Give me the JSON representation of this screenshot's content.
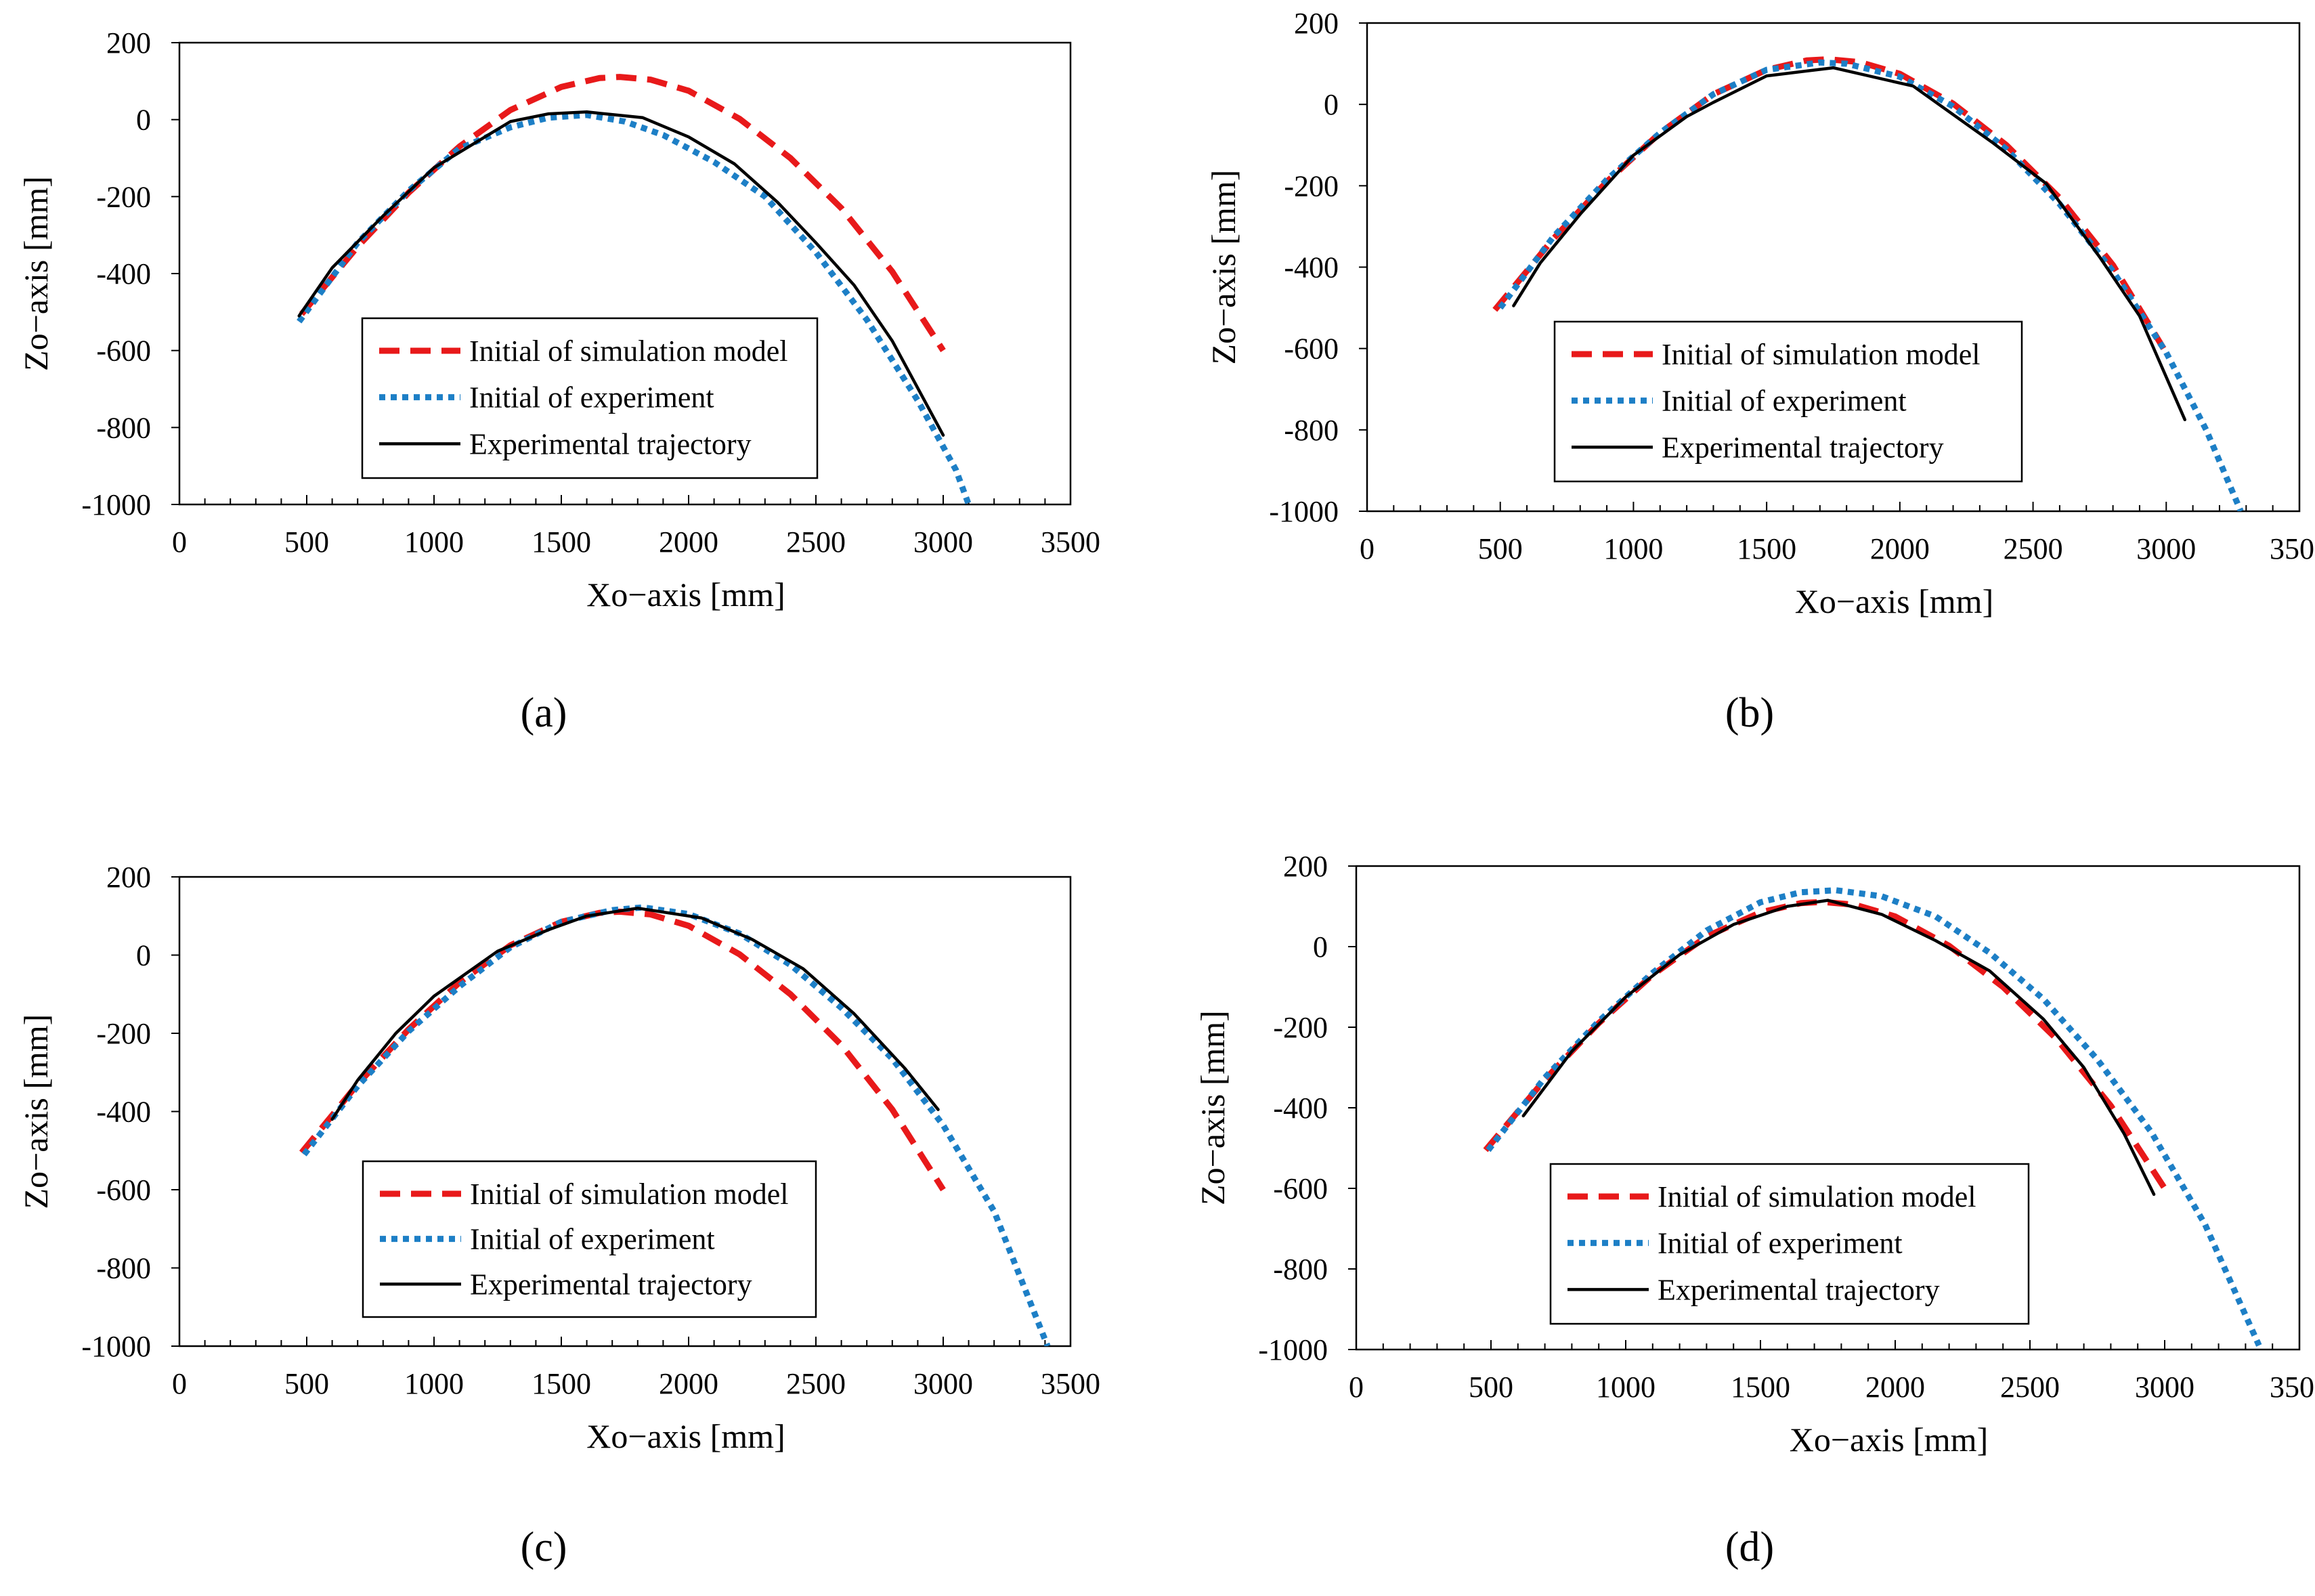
{
  "figure": {
    "legend_labels": [
      "Initial of simulation model",
      "Initial of experiment",
      "Experimental trajectory"
    ],
    "series_colors": {
      "simulation": "#e8191a",
      "experiment": "#1d7fc6",
      "trajectory": "#000000"
    }
  },
  "chart_data": [
    {
      "type": "line",
      "panel": "(a)",
      "xlabel": "Xo−axis [mm]",
      "ylabel": "Zo−axis [mm]",
      "xlim": [
        0,
        3500
      ],
      "ylim": [
        -1000,
        200
      ],
      "xticks": [
        "0",
        "500",
        "1000",
        "1500",
        "2000",
        "2500",
        "3000",
        "3500"
      ],
      "yticks": [
        "200",
        "0",
        "-200",
        "-400",
        "-600",
        "-800",
        "-1000"
      ],
      "legend": "lower-center",
      "series": [
        {
          "name": "Initial of simulation model",
          "style": "dashed",
          "x": [
            480,
            700,
            900,
            1100,
            1300,
            1500,
            1650,
            1730,
            1850,
            2000,
            2200,
            2400,
            2600,
            2800,
            3000
          ],
          "y": [
            -505,
            -330,
            -190,
            -70,
            25,
            85,
            108,
            111,
            104,
            75,
            2,
            -100,
            -230,
            -395,
            -600
          ]
        },
        {
          "name": "Initial of experiment",
          "style": "dotted",
          "x": [
            470,
            700,
            900,
            1100,
            1300,
            1450,
            1600,
            1750,
            1900,
            2100,
            2300,
            2500,
            2700,
            2900,
            3050,
            3100
          ],
          "y": [
            -525,
            -320,
            -185,
            -75,
            -20,
            5,
            12,
            -5,
            -40,
            -110,
            -200,
            -345,
            -520,
            -730,
            -910,
            -1000
          ]
        },
        {
          "name": "Experimental trajectory",
          "style": "solid",
          "x": [
            470,
            600,
            800,
            1000,
            1200,
            1300,
            1450,
            1600,
            1820,
            2000,
            2180,
            2350,
            2500,
            2650,
            2800,
            3000
          ],
          "y": [
            -510,
            -385,
            -250,
            -125,
            -45,
            -5,
            15,
            20,
            5,
            -45,
            -115,
            -215,
            -320,
            -430,
            -575,
            -820
          ]
        }
      ]
    },
    {
      "type": "line",
      "panel": "(b)",
      "xlabel": "Xo−axis [mm]",
      "ylabel": "Zo−axis [mm]",
      "xlim": [
        0,
        3500
      ],
      "ylim": [
        -1000,
        200
      ],
      "xticks": [
        "0",
        "500",
        "1000",
        "1500",
        "2000",
        "2500",
        "3000",
        "3500"
      ],
      "yticks": [
        "200",
        "0",
        "-200",
        "-400",
        "-600",
        "-800",
        "-1000"
      ],
      "legend": "lower-center",
      "series": [
        {
          "name": "Initial of simulation model",
          "style": "dashed",
          "x": [
            480,
            700,
            900,
            1100,
            1300,
            1500,
            1650,
            1730,
            1850,
            2000,
            2200,
            2400,
            2600,
            2800,
            2990
          ],
          "y": [
            -505,
            -330,
            -190,
            -70,
            25,
            85,
            108,
            111,
            104,
            75,
            2,
            -100,
            -230,
            -395,
            -600
          ]
        },
        {
          "name": "Initial of experiment",
          "style": "dotted",
          "x": [
            500,
            700,
            900,
            1100,
            1300,
            1500,
            1700,
            1800,
            2000,
            2200,
            2400,
            2600,
            2800,
            3000,
            3150,
            3280
          ],
          "y": [
            -500,
            -325,
            -185,
            -70,
            25,
            85,
            103,
            100,
            68,
            -5,
            -110,
            -245,
            -410,
            -610,
            -800,
            -1000
          ]
        },
        {
          "name": "Experimental trajectory",
          "style": "solid",
          "x": [
            550,
            650,
            800,
            1000,
            1200,
            1300,
            1500,
            1750,
            2050,
            2200,
            2350,
            2550,
            2750,
            2900,
            3070
          ],
          "y": [
            -495,
            -390,
            -270,
            -125,
            -30,
            5,
            70,
            90,
            45,
            -25,
            -95,
            -195,
            -375,
            -520,
            -775
          ]
        }
      ]
    },
    {
      "type": "line",
      "panel": "(c)",
      "xlabel": "Xo−axis [mm]",
      "ylabel": "Zo−axis [mm]",
      "xlim": [
        0,
        3500
      ],
      "ylim": [
        -1000,
        200
      ],
      "xticks": [
        "0",
        "500",
        "1000",
        "1500",
        "2000",
        "2500",
        "3000",
        "3500"
      ],
      "yticks": [
        "200",
        "0",
        "-200",
        "-400",
        "-600",
        "-800",
        "-1000"
      ],
      "legend": "lower-center",
      "series": [
        {
          "name": "Initial of simulation model",
          "style": "dashed",
          "x": [
            480,
            700,
            900,
            1100,
            1300,
            1500,
            1650,
            1730,
            1850,
            2000,
            2200,
            2400,
            2600,
            2800,
            3000
          ],
          "y": [
            -505,
            -330,
            -190,
            -70,
            25,
            85,
            108,
            111,
            104,
            75,
            2,
            -100,
            -230,
            -395,
            -600
          ]
        },
        {
          "name": "Initial of experiment",
          "style": "dotted",
          "x": [
            490,
            700,
            900,
            1100,
            1300,
            1500,
            1700,
            1820,
            2000,
            2200,
            2400,
            2600,
            2800,
            3000,
            3200,
            3410
          ],
          "y": [
            -510,
            -335,
            -195,
            -80,
            20,
            85,
            115,
            122,
            105,
            55,
            -25,
            -135,
            -265,
            -435,
            -655,
            -1000
          ]
        },
        {
          "name": "Experimental trajectory",
          "style": "solid",
          "x": [
            600,
            700,
            850,
            1000,
            1250,
            1450,
            1600,
            1800,
            2050,
            2250,
            2450,
            2650,
            2850,
            2980
          ],
          "y": [
            -420,
            -320,
            -200,
            -105,
            10,
            65,
            100,
            120,
            95,
            40,
            -35,
            -150,
            -290,
            -395
          ]
        }
      ]
    },
    {
      "type": "line",
      "panel": "(d)",
      "xlabel": "Xo−axis [mm]",
      "ylabel": "Zo−axis [mm]",
      "xlim": [
        0,
        3500
      ],
      "ylim": [
        -1000,
        200
      ],
      "xticks": [
        "0",
        "500",
        "1000",
        "1500",
        "2000",
        "2500",
        "3000",
        "3500"
      ],
      "yticks": [
        "200",
        "0",
        "-200",
        "-400",
        "-600",
        "-800",
        "-1000"
      ],
      "legend": "lower-center",
      "series": [
        {
          "name": "Initial of simulation model",
          "style": "dashed",
          "x": [
            480,
            700,
            900,
            1100,
            1300,
            1500,
            1650,
            1730,
            1850,
            2000,
            2200,
            2400,
            2600,
            2800,
            3000
          ],
          "y": [
            -505,
            -330,
            -190,
            -70,
            25,
            85,
            108,
            111,
            104,
            75,
            2,
            -100,
            -230,
            -395,
            -600
          ]
        },
        {
          "name": "Initial of experiment",
          "style": "dotted",
          "x": [
            490,
            700,
            900,
            1100,
            1300,
            1500,
            1650,
            1780,
            1950,
            2150,
            2350,
            2550,
            2750,
            2950,
            3150,
            3350
          ],
          "y": [
            -505,
            -325,
            -185,
            -65,
            40,
            110,
            135,
            140,
            125,
            75,
            -15,
            -130,
            -280,
            -460,
            -690,
            -990
          ]
        },
        {
          "name": "Experimental trajectory",
          "style": "solid",
          "x": [
            620,
            800,
            1000,
            1200,
            1400,
            1600,
            1750,
            1950,
            2150,
            2350,
            2550,
            2700,
            2850,
            2960
          ],
          "y": [
            -420,
            -260,
            -125,
            -20,
            55,
            100,
            115,
            80,
            15,
            -60,
            -180,
            -300,
            -465,
            -615
          ]
        }
      ]
    }
  ],
  "captions": [
    "(a)",
    "(b)",
    "(c)",
    "(d)"
  ]
}
